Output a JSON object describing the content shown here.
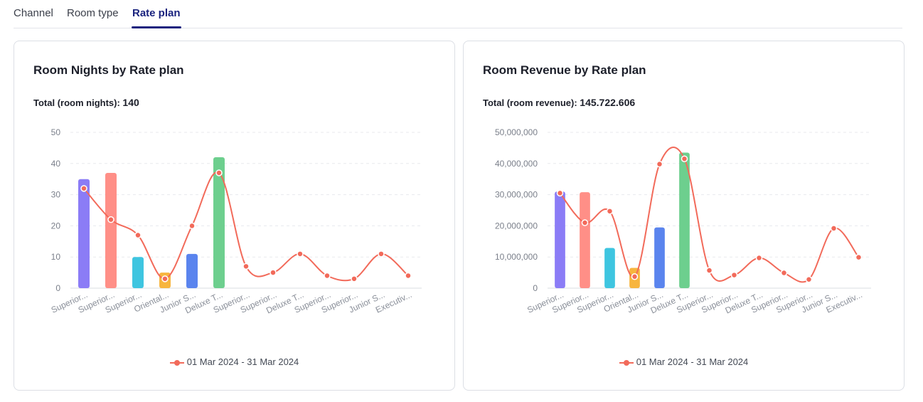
{
  "tabs": [
    {
      "label": "Channel"
    },
    {
      "label": "Room type"
    },
    {
      "label": "Rate plan"
    }
  ],
  "colors": {
    "accent": "#1a237e",
    "line": "#f26a5a",
    "bars": [
      "#8b7cf6",
      "#ff8f87",
      "#3ec5e0",
      "#f7b53e",
      "#5a84ee",
      "#6dcf8e"
    ]
  },
  "charts": [
    {
      "title": "Room Nights by Rate plan",
      "total_label": "Total (room nights):",
      "total_value": "140",
      "legend_label": "01 Mar 2024 - 31 Mar 2024"
    },
    {
      "title": "Room Revenue by Rate plan",
      "total_label": "Total (room revenue):",
      "total_value": "145.722.606",
      "legend_label": "01 Mar 2024 - 31 Mar 2024"
    }
  ],
  "chart_data": [
    {
      "type": "bar",
      "categories": [
        "Superior...",
        "Superior...",
        "Superior...",
        "Oriental...",
        "Junior S...",
        "Deluxe T...",
        "Superior...",
        "Superior...",
        "Deluxe T...",
        "Superior...",
        "Superior...",
        "Junior S...",
        "Executiv..."
      ],
      "bar_values": [
        35,
        37,
        10,
        5,
        11,
        42,
        null,
        null,
        null,
        null,
        null,
        null,
        null
      ],
      "series": [
        {
          "name": "01 Mar 2024 - 31 Mar 2024",
          "values": [
            32,
            22,
            17,
            3,
            20,
            37,
            7,
            5,
            11,
            4,
            3,
            11,
            4
          ]
        }
      ],
      "yticks": [
        "0",
        "10",
        "20",
        "30",
        "40",
        "50"
      ],
      "ylim": [
        0,
        50
      ],
      "grid": true,
      "legend": "bottom"
    },
    {
      "type": "bar",
      "categories": [
        "Superior...",
        "Superior...",
        "Superior...",
        "Oriental...",
        "Junior S...",
        "Deluxe T...",
        "Superior...",
        "Superior...",
        "Deluxe T...",
        "Superior...",
        "Superior...",
        "Junior S...",
        "Executiv..."
      ],
      "bar_values": [
        31000000,
        30800000,
        12900000,
        6500000,
        19500000,
        43500000,
        null,
        null,
        null,
        null,
        null,
        null,
        null
      ],
      "series": [
        {
          "name": "01 Mar 2024 - 31 Mar 2024",
          "values": [
            30500000,
            21000000,
            24700000,
            3700000,
            39800000,
            41500000,
            5700000,
            4200000,
            9700000,
            4900000,
            2800000,
            19200000,
            9900000
          ]
        }
      ],
      "yticks": [
        "0",
        "10,000,000",
        "20,000,000",
        "30,000,000",
        "40,000,000",
        "50,000,000"
      ],
      "ylim": [
        0,
        50000000
      ],
      "grid": true,
      "legend": "bottom"
    }
  ]
}
